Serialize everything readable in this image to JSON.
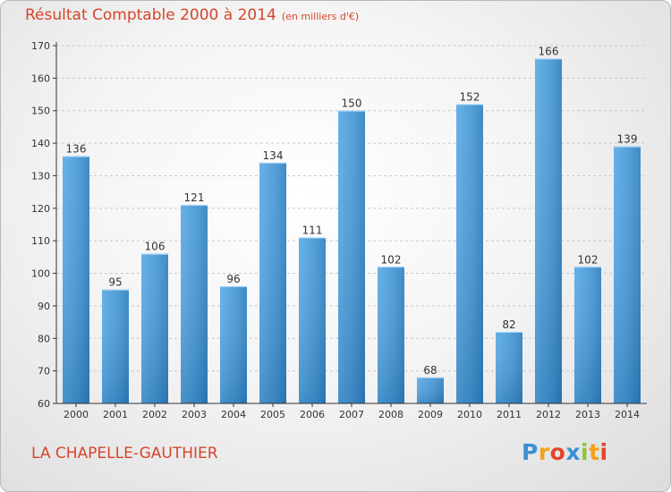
{
  "title": "Résultat Comptable 2000 à 2014",
  "subtitle": "(en milliers d'€)",
  "commune": "LA CHAPELLE-GAUTHIER",
  "logo": {
    "letters": [
      "P",
      "r",
      "o",
      "x",
      "i",
      "t",
      "i"
    ],
    "colors": [
      "#3a8fd6",
      "#f0a21b",
      "#e2462a",
      "#3a8fd6",
      "#8cc63f",
      "#f0a21b",
      "#e2462a"
    ]
  },
  "colors": {
    "accent": "#d6452b",
    "bar_top": "#62b2ec",
    "bar_bottom": "#2178b8",
    "axis": "#333333"
  },
  "chart_data": {
    "type": "bar",
    "categories": [
      "2000",
      "2001",
      "2002",
      "2003",
      "2004",
      "2005",
      "2006",
      "2007",
      "2008",
      "2009",
      "2010",
      "2011",
      "2012",
      "2013",
      "2014"
    ],
    "values": [
      136,
      95,
      106,
      121,
      96,
      134,
      111,
      150,
      102,
      68,
      152,
      82,
      166,
      102,
      139
    ],
    "ylim": [
      60,
      170
    ],
    "yticks": [
      60,
      70,
      80,
      90,
      100,
      110,
      120,
      130,
      140,
      150,
      160,
      170
    ],
    "grid": true
  }
}
